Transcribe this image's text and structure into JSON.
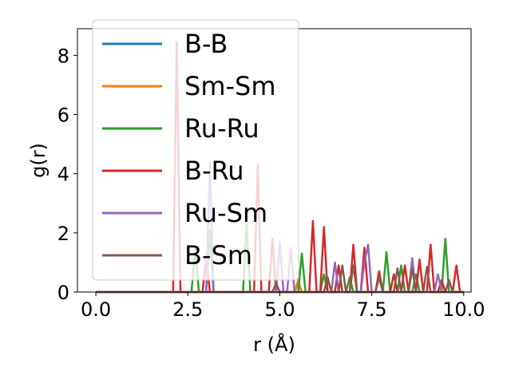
{
  "chart_data": {
    "type": "line",
    "xlabel": "r (Å)",
    "ylabel": "g(r)",
    "xlim": [
      -0.5,
      10.2
    ],
    "ylim": [
      0,
      8.9
    ],
    "xticks": [
      0.0,
      2.5,
      5.0,
      7.5,
      10.0
    ],
    "xtick_labels": [
      "0.0",
      "2.5",
      "5.0",
      "7.5",
      "10.0"
    ],
    "yticks": [
      0,
      2,
      4,
      6,
      8
    ],
    "ytick_labels": [
      "0",
      "2",
      "4",
      "6",
      "8"
    ],
    "legend_position": "top-left",
    "grid": false,
    "series": [
      {
        "name": "B-B",
        "color": "#1f77b4",
        "points": [
          [
            0,
            0
          ],
          [
            5.4,
            0
          ],
          [
            5.5,
            0.3
          ],
          [
            5.6,
            0
          ],
          [
            10,
            0
          ]
        ]
      },
      {
        "name": "Sm-Sm",
        "color": "#ff7f0e",
        "points": [
          [
            0,
            0
          ],
          [
            5.4,
            0
          ],
          [
            5.5,
            0.4
          ],
          [
            5.6,
            0
          ],
          [
            10,
            0
          ]
        ]
      },
      {
        "name": "Ru-Ru",
        "color": "#2ca02c",
        "points": [
          [
            0,
            0
          ],
          [
            2.6,
            0
          ],
          [
            2.7,
            1.5
          ],
          [
            2.8,
            0
          ],
          [
            3.0,
            0
          ],
          [
            3.1,
            2.1
          ],
          [
            3.2,
            0
          ],
          [
            4.0,
            0
          ],
          [
            4.1,
            2.3
          ],
          [
            4.2,
            0
          ],
          [
            5.5,
            0
          ],
          [
            5.6,
            1.3
          ],
          [
            5.7,
            0
          ],
          [
            6.1,
            0
          ],
          [
            6.2,
            0.6
          ],
          [
            6.3,
            0
          ],
          [
            6.8,
            0
          ],
          [
            6.9,
            0.5
          ],
          [
            7.0,
            0
          ],
          [
            7.8,
            0
          ],
          [
            7.9,
            1.35
          ],
          [
            8.0,
            0
          ],
          [
            8.2,
            0
          ],
          [
            8.3,
            0.9
          ],
          [
            8.4,
            0
          ],
          [
            8.6,
            0
          ],
          [
            8.7,
            0.6
          ],
          [
            8.8,
            0
          ],
          [
            9.4,
            0
          ],
          [
            9.5,
            1.8
          ],
          [
            9.6,
            0
          ],
          [
            10,
            0
          ]
        ]
      },
      {
        "name": "B-Ru",
        "color": "#d62728",
        "points": [
          [
            0,
            0
          ],
          [
            2.1,
            0
          ],
          [
            2.2,
            8.45
          ],
          [
            2.3,
            0
          ],
          [
            2.5,
            0
          ],
          [
            2.9,
            0
          ],
          [
            3.0,
            1.2
          ],
          [
            3.1,
            0
          ],
          [
            4.3,
            0
          ],
          [
            4.4,
            4.3
          ],
          [
            4.5,
            0
          ],
          [
            4.7,
            0
          ],
          [
            4.8,
            1.8
          ],
          [
            4.9,
            0
          ],
          [
            5.8,
            0
          ],
          [
            5.9,
            2.4
          ],
          [
            6.0,
            0
          ],
          [
            6.1,
            0
          ],
          [
            6.2,
            2.2
          ],
          [
            6.3,
            0
          ],
          [
            6.5,
            0
          ],
          [
            6.6,
            0.9
          ],
          [
            6.7,
            0
          ],
          [
            6.9,
            0
          ],
          [
            7.0,
            1.6
          ],
          [
            7.1,
            0
          ],
          [
            7.2,
            0
          ],
          [
            7.3,
            1.5
          ],
          [
            7.4,
            0
          ],
          [
            7.6,
            0
          ],
          [
            7.7,
            0.7
          ],
          [
            7.8,
            0
          ],
          [
            8.0,
            0
          ],
          [
            8.1,
            0.6
          ],
          [
            8.2,
            0
          ],
          [
            8.3,
            0
          ],
          [
            8.4,
            0.9
          ],
          [
            8.5,
            0
          ],
          [
            8.7,
            0
          ],
          [
            8.8,
            1.1
          ],
          [
            8.9,
            0
          ],
          [
            9.0,
            0
          ],
          [
            9.1,
            1.6
          ],
          [
            9.2,
            0
          ],
          [
            9.3,
            0
          ],
          [
            9.4,
            0.4
          ],
          [
            9.5,
            0
          ],
          [
            9.7,
            0
          ],
          [
            9.8,
            0.9
          ],
          [
            9.9,
            0
          ]
        ]
      },
      {
        "name": "Ru-Sm",
        "color": "#9467bd",
        "points": [
          [
            0,
            0
          ],
          [
            3.0,
            0
          ],
          [
            3.1,
            4.35
          ],
          [
            3.2,
            0
          ],
          [
            4.9,
            0
          ],
          [
            5.0,
            1.7
          ],
          [
            5.1,
            0
          ],
          [
            5.2,
            0
          ],
          [
            5.3,
            1.5
          ],
          [
            5.4,
            0
          ],
          [
            6.4,
            0
          ],
          [
            6.5,
            1.0
          ],
          [
            6.6,
            0
          ],
          [
            7.2,
            0
          ],
          [
            7.3,
            1.0
          ],
          [
            7.4,
            1.6
          ],
          [
            7.5,
            0
          ],
          [
            8.5,
            0
          ],
          [
            8.6,
            1.15
          ],
          [
            8.7,
            0
          ],
          [
            9.2,
            0
          ],
          [
            9.3,
            0.6
          ],
          [
            9.4,
            0
          ],
          [
            10,
            0
          ]
        ]
      },
      {
        "name": "B-Sm",
        "color": "#8c564b",
        "points": [
          [
            0,
            0
          ],
          [
            4.8,
            0
          ],
          [
            4.9,
            0.3
          ],
          [
            5.0,
            0
          ],
          [
            6.2,
            0
          ],
          [
            6.3,
            0.5
          ],
          [
            6.4,
            0
          ],
          [
            6.6,
            0
          ],
          [
            6.7,
            0.9
          ],
          [
            6.8,
            0
          ],
          [
            6.9,
            0
          ],
          [
            7.0,
            0.9
          ],
          [
            7.1,
            0
          ],
          [
            7.6,
            0
          ],
          [
            7.7,
            0.5
          ],
          [
            7.8,
            0
          ],
          [
            8.1,
            0
          ],
          [
            8.2,
            0.8
          ],
          [
            8.3,
            0
          ],
          [
            8.5,
            0
          ],
          [
            8.6,
            0.8
          ],
          [
            8.7,
            0
          ],
          [
            8.9,
            0
          ],
          [
            9.0,
            0.85
          ],
          [
            9.1,
            0
          ],
          [
            9.5,
            0
          ],
          [
            9.6,
            0.4
          ],
          [
            9.7,
            0
          ],
          [
            10,
            0
          ]
        ]
      }
    ]
  }
}
